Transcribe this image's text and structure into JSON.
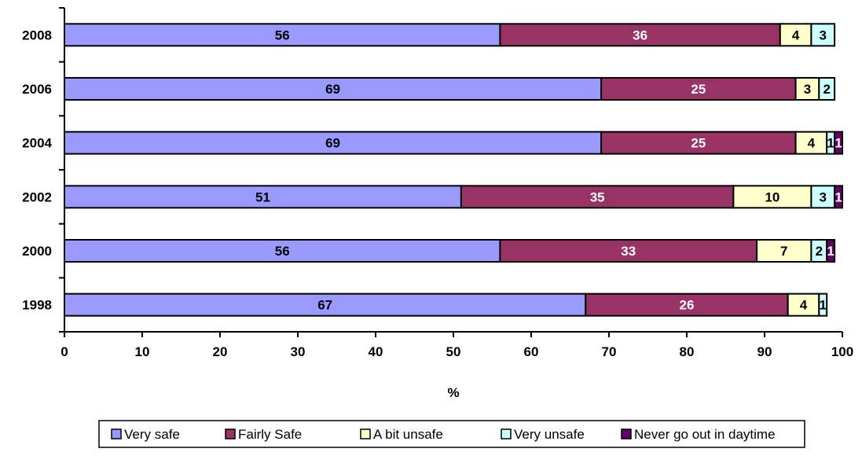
{
  "chart_data": {
    "type": "bar",
    "orientation": "horizontal",
    "stacked": true,
    "title": "",
    "xlabel": "%",
    "ylabel": "",
    "xlim": [
      0,
      100
    ],
    "xticks": [
      "0",
      "10",
      "20",
      "30",
      "40",
      "50",
      "60",
      "70",
      "80",
      "90",
      "100"
    ],
    "categories": [
      "2008",
      "2006",
      "2004",
      "2002",
      "2000",
      "1998"
    ],
    "series": [
      {
        "name": "Very safe",
        "color": "#9999FF",
        "label_color": "#000000",
        "values": [
          56,
          69,
          69,
          51,
          56,
          67
        ]
      },
      {
        "name": "Fairly Safe",
        "color": "#993366",
        "label_color": "#FFFFFF",
        "values": [
          36,
          25,
          25,
          35,
          33,
          26
        ]
      },
      {
        "name": "A bit unsafe",
        "color": "#FFFFCC",
        "label_color": "#000000",
        "values": [
          4,
          3,
          4,
          10,
          7,
          4
        ]
      },
      {
        "name": "Very unsafe",
        "color": "#CCFFFF",
        "label_color": "#000000",
        "values": [
          3,
          2,
          1,
          3,
          2,
          1
        ]
      },
      {
        "name": "Never go out in daytime",
        "color": "#660066",
        "label_color": "#FFFFFF",
        "values": [
          0,
          0,
          1,
          1,
          1,
          0
        ]
      }
    ],
    "grid": false,
    "legend_position": "bottom"
  }
}
